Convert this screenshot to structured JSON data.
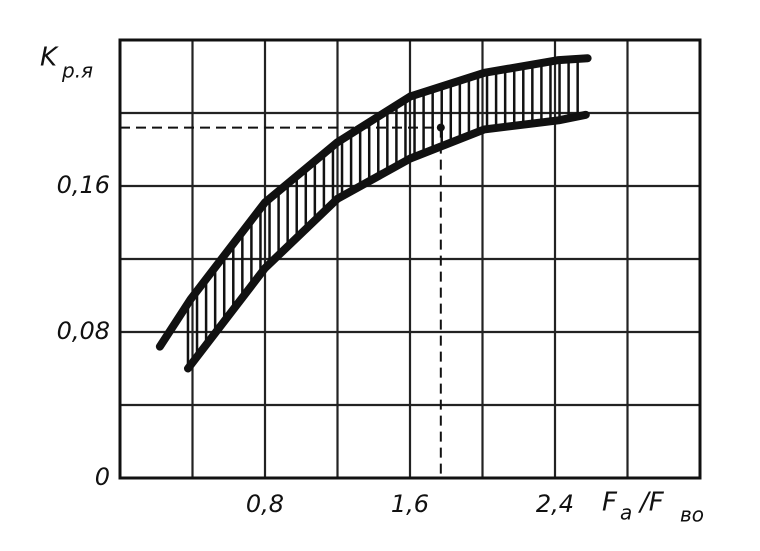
{
  "chart_data": {
    "type": "line",
    "y_label": {
      "main": "K",
      "sub": "р.я"
    },
    "x_label": {
      "parts": [
        "F",
        "a",
        "/F",
        "во"
      ]
    },
    "xlim": [
      0,
      3.2
    ],
    "ylim": [
      0,
      0.24
    ],
    "xticks": [
      {
        "value": 0.8,
        "label": "0,8"
      },
      {
        "value": 1.6,
        "label": "1,6"
      },
      {
        "value": 2.4,
        "label": "2,4"
      }
    ],
    "yticks": [
      0,
      {
        "value": 0.08,
        "label": "0,08"
      },
      {
        "value": 0.16,
        "label": "0,16"
      }
    ],
    "xgrid": [
      0.4,
      0.8,
      1.2,
      1.6,
      2.0,
      2.4,
      2.8
    ],
    "ygrid": [
      0.04,
      0.08,
      0.12,
      0.16,
      0.2
    ],
    "grid": true,
    "hatch_between_series": true,
    "series": [
      {
        "color": "#111111",
        "x": [
          0.22,
          0.39,
          0.8,
          1.2,
          1.6,
          2.01,
          2.42,
          2.58
        ],
        "values": [
          0.072,
          0.098,
          0.151,
          0.184,
          0.209,
          0.222,
          0.229,
          0.23
        ]
      },
      {
        "color": "#111111",
        "x": [
          0.375,
          0.8,
          1.2,
          1.6,
          2.01,
          2.42,
          2.57
        ],
        "values": [
          0.06,
          0.115,
          0.153,
          0.175,
          0.191,
          0.196,
          0.199
        ]
      }
    ],
    "reference_point": {
      "x": 1.77,
      "y": 0.192
    }
  }
}
